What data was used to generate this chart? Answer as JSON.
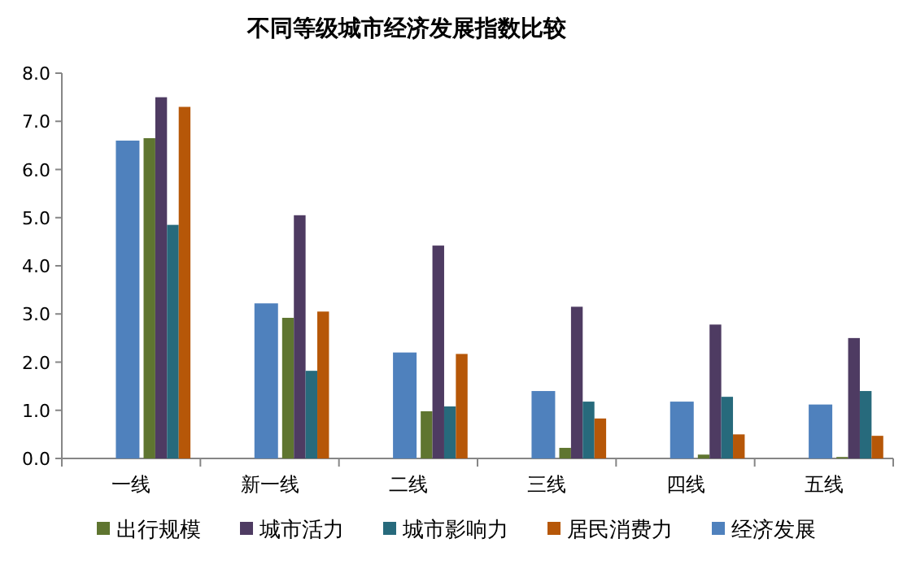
{
  "chart_data": {
    "type": "bar",
    "title": "不同等级城市经济发展指数比较",
    "categories": [
      "一线",
      "新一线",
      "二线",
      "三线",
      "四线",
      "五线"
    ],
    "series": [
      {
        "name": "出行规模",
        "color": "#5f7530",
        "values": [
          6.65,
          2.92,
          0.98,
          0.22,
          0.08,
          0.03
        ]
      },
      {
        "name": "城市活力",
        "color": "#4e3b62",
        "values": [
          7.5,
          5.05,
          4.42,
          3.15,
          2.78,
          2.5
        ]
      },
      {
        "name": "城市影响力",
        "color": "#276a7c",
        "values": [
          4.85,
          1.82,
          1.08,
          1.18,
          1.28,
          1.4
        ]
      },
      {
        "name": "居民消费力",
        "color": "#b65708",
        "values": [
          7.3,
          3.05,
          2.17,
          0.83,
          0.5,
          0.47
        ]
      },
      {
        "name": "经济发展",
        "color": "#4f81bd",
        "values": [
          6.6,
          3.22,
          2.2,
          1.4,
          1.18,
          1.12
        ]
      }
    ],
    "ylim": [
      0,
      8
    ],
    "yticks": [
      {
        "value": 0,
        "label": "0.0"
      },
      {
        "value": 1,
        "label": "1.0"
      },
      {
        "value": 2,
        "label": "2.0"
      },
      {
        "value": 3,
        "label": "3.0"
      },
      {
        "value": 4,
        "label": "4.0"
      },
      {
        "value": 5,
        "label": "5.0"
      },
      {
        "value": 6,
        "label": "6.0"
      },
      {
        "value": 7,
        "label": "7.0"
      },
      {
        "value": 8,
        "label": "8.0"
      }
    ],
    "grid": false,
    "legend": "bottom"
  }
}
